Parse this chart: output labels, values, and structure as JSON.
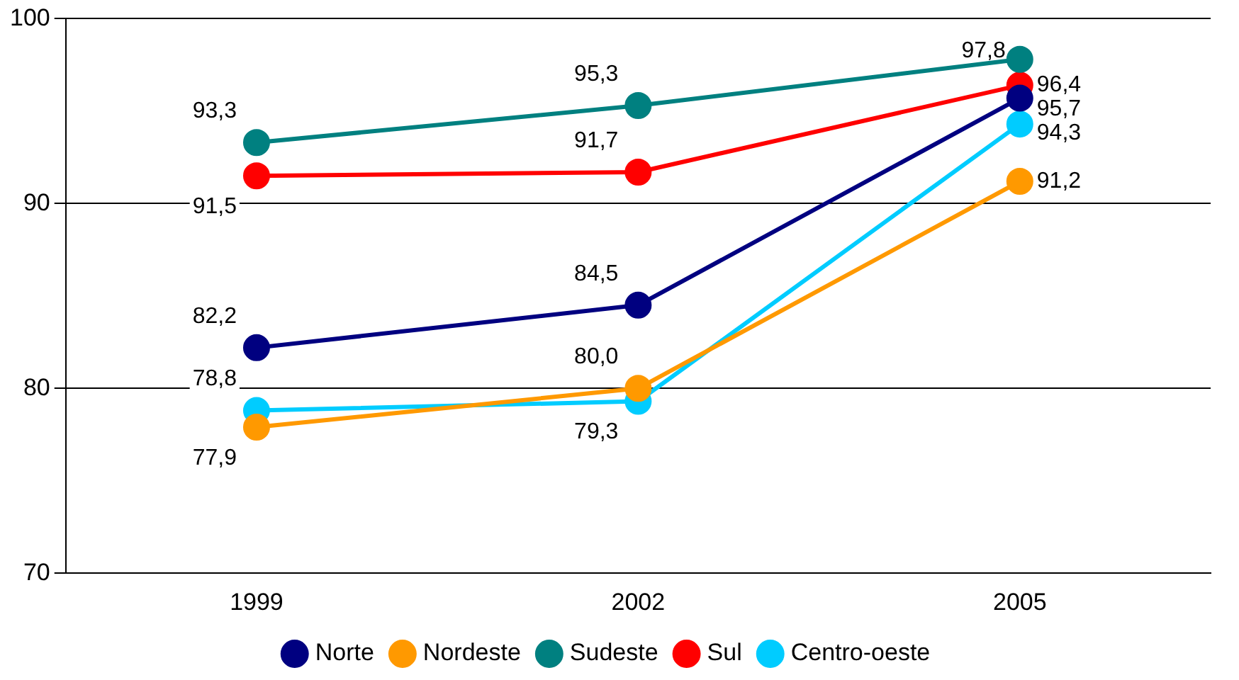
{
  "chart_data": {
    "type": "line",
    "categories": [
      "1999",
      "2002",
      "2005"
    ],
    "series": [
      {
        "name": "Norte",
        "color": "#000080",
        "values": [
          82.2,
          84.5,
          95.7
        ],
        "value_labels": [
          "82,2",
          "84,5",
          "95,7"
        ]
      },
      {
        "name": "Nordeste",
        "color": "#ff9900",
        "values": [
          77.9,
          80.0,
          91.2
        ],
        "value_labels": [
          "77,9",
          "80,0",
          "91,2"
        ]
      },
      {
        "name": "Sudeste",
        "color": "#008080",
        "values": [
          93.3,
          95.3,
          97.8
        ],
        "value_labels": [
          "93,3",
          "95,3",
          "97,8"
        ]
      },
      {
        "name": "Sul",
        "color": "#ff0000",
        "values": [
          91.5,
          91.7,
          96.4
        ],
        "value_labels": [
          "91,5",
          "91,7",
          "96,4"
        ]
      },
      {
        "name": "Centro-oeste",
        "color": "#00ccff",
        "values": [
          78.8,
          79.3,
          94.3
        ],
        "value_labels": [
          "78,8",
          "79,3",
          "94,3"
        ]
      }
    ],
    "ylim": [
      70,
      100
    ],
    "yticks": [
      70,
      80,
      90,
      100
    ],
    "grid": "y",
    "legend": "bottom",
    "marker": "circle",
    "line_style": "solid"
  }
}
